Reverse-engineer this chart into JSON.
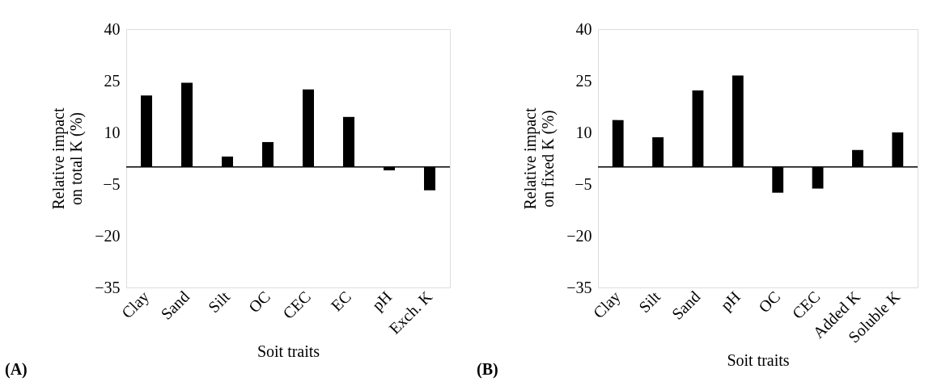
{
  "chart_data": [
    {
      "type": "bar",
      "xlabel": "Soit traits",
      "ylabel": "Relative impact\non total K (%)",
      "annotations": [
        "(A)"
      ],
      "categories": [
        "Clay",
        "Sand",
        "Silt",
        "OC",
        "CEC",
        "EC",
        "pH",
        "Exch. K"
      ],
      "values": [
        20.7,
        24.4,
        3.0,
        7.2,
        22.5,
        14.5,
        -1.0,
        -6.8
      ],
      "color": "#000000",
      "ylim": [
        -35,
        40
      ],
      "yticks": [
        -35,
        -20,
        -5,
        10,
        25,
        40
      ],
      "grid": false,
      "ref_lines": [
        {
          "axis": "y",
          "value": 0
        }
      ]
    },
    {
      "type": "bar",
      "xlabel": "Soit traits",
      "ylabel": "Relative impact\non fixed K (%)",
      "annotations": [
        "(B)"
      ],
      "categories": [
        "Clay",
        "Silt",
        "Sand",
        "pH",
        "OC",
        "CEC",
        "Added K",
        "Soluble K"
      ],
      "values": [
        13.6,
        8.6,
        22.2,
        26.5,
        -7.5,
        -6.3,
        4.9,
        10.0
      ],
      "color": "#000000",
      "ylim": [
        -35,
        40
      ],
      "yticks": [
        -35,
        -20,
        -5,
        10,
        25,
        40
      ],
      "grid": false,
      "ref_lines": [
        {
          "axis": "y",
          "value": 0
        }
      ]
    }
  ]
}
